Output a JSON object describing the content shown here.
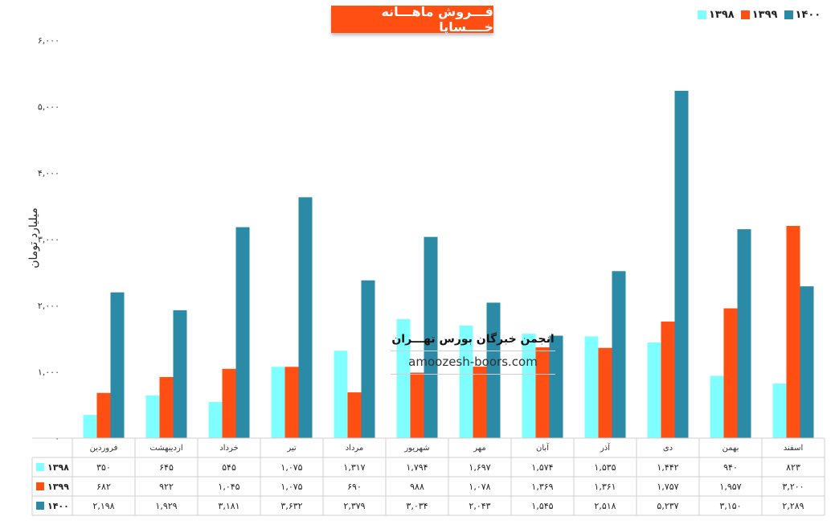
{
  "title": "فـــروش ماهـــانه خــــساپا",
  "y_axis_label": "میلیارد تومان",
  "watermark": {
    "line1": "انجمن خبرگان بورس تهـــران",
    "line2": "amoozesh-boors.com"
  },
  "y_ticks": [
    "۰",
    "۱,۰۰۰",
    "۲,۰۰۰",
    "۳,۰۰۰",
    "۴,۰۰۰",
    "۵,۰۰۰",
    "۶,۰۰۰"
  ],
  "colors": {
    "1398": "#7FFFFF",
    "1399": "#FF4F12",
    "1400": "#2B8AA6"
  },
  "chart_data": {
    "type": "bar",
    "categories": [
      "فروردین",
      "اردیبهشت",
      "خرداد",
      "تیر",
      "مرداد",
      "شهریور",
      "مهر",
      "آبان",
      "آذر",
      "دی",
      "بهمن",
      "اسفند"
    ],
    "ylabel": "میلیارد تومان",
    "ylim": [
      0,
      6000
    ],
    "legend_position": "top-right",
    "series": [
      {
        "name": "۱۳۹۸",
        "key": "1398",
        "values": [
          350,
          645,
          545,
          1075,
          1317,
          1794,
          1697,
          1574,
          1535,
          1442,
          940,
          823
        ],
        "labels": [
          "۳۵۰",
          "۶۴۵",
          "۵۴۵",
          "۱,۰۷۵",
          "۱,۳۱۷",
          "۱,۷۹۴",
          "۱,۶۹۷",
          "۱,۵۷۴",
          "۱,۵۳۵",
          "۱,۴۴۲",
          "۹۴۰",
          "۸۲۳"
        ]
      },
      {
        "name": "۱۳۹۹",
        "key": "1399",
        "values": [
          682,
          922,
          1045,
          1075,
          690,
          988,
          1078,
          1369,
          1361,
          1757,
          1957,
          3200
        ],
        "labels": [
          "۶۸۲",
          "۹۲۲",
          "۱,۰۴۵",
          "۱,۰۷۵",
          "۶۹۰",
          "۹۸۸",
          "۱,۰۷۸",
          "۱,۳۶۹",
          "۱,۳۶۱",
          "۱,۷۵۷",
          "۱,۹۵۷",
          "۳,۲۰۰"
        ]
      },
      {
        "name": "۱۴۰۰",
        "key": "1400",
        "values": [
          2198,
          1929,
          3181,
          3632,
          2379,
          3034,
          2043,
          1545,
          2518,
          5237,
          3150,
          2289
        ],
        "labels": [
          "۲,۱۹۸",
          "۱,۹۲۹",
          "۳,۱۸۱",
          "۳,۶۳۲",
          "۲,۳۷۹",
          "۳,۰۳۴",
          "۲,۰۴۳",
          "۱,۵۴۵",
          "۲,۵۱۸",
          "۵,۲۳۷",
          "۳,۱۵۰",
          "۲,۲۸۹"
        ]
      }
    ]
  }
}
